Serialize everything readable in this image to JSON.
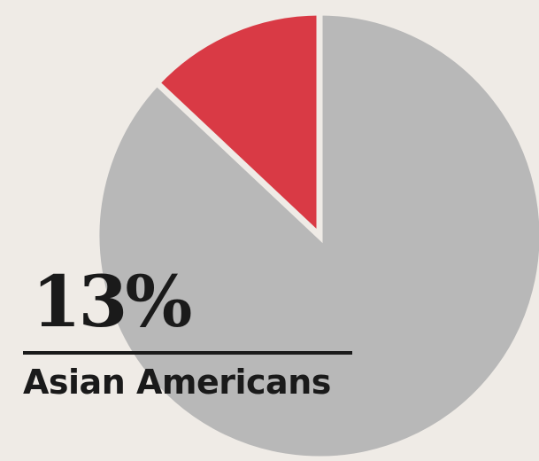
{
  "chart_data": {
    "type": "pie",
    "slices": [
      {
        "label": "Asian Americans",
        "value": 13,
        "color": "#d93a45"
      },
      {
        "label": "",
        "value": 87,
        "color": "#b8b8b8"
      }
    ],
    "highlight_value_text": "13%",
    "highlight_label": "Asian Americans",
    "separator_color": "#efebe6"
  }
}
